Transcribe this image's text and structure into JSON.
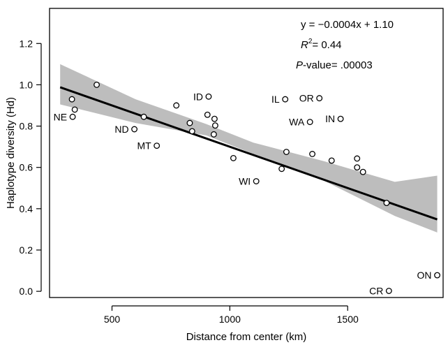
{
  "chart_data": {
    "type": "scatter",
    "xlabel": "Distance from center (km)",
    "ylabel": "Haplotype diversity (Hd)",
    "xlim": [
      235,
      1905
    ],
    "ylim": [
      -0.03,
      1.37
    ],
    "x_ticks": [
      500,
      1000,
      1500
    ],
    "y_ticks": [
      0.0,
      0.2,
      0.4,
      0.6,
      0.8,
      1.0,
      1.2
    ],
    "y_tick_labels": [
      "0.0",
      "0.2",
      "0.4",
      "0.6",
      "0.8",
      "1.0",
      "1.2"
    ],
    "annotations": {
      "equation": "y = −0.0004x + 1.10",
      "r2_prefix": "R",
      "r2_sup": "2",
      "r2_value": "= 0.44",
      "p_prefix": "P",
      "p_value": "-value= .00003"
    },
    "regression": {
      "slope": -0.0004,
      "intercept": 1.1,
      "x_range": [
        280,
        1880
      ],
      "ci_band": [
        {
          "x": 280,
          "lo": 0.905,
          "hi": 1.1
        },
        {
          "x": 600,
          "lo": 0.815,
          "hi": 0.93
        },
        {
          "x": 900,
          "lo": 0.755,
          "hi": 0.81
        },
        {
          "x": 1100,
          "lo": 0.665,
          "hi": 0.72
        },
        {
          "x": 1400,
          "lo": 0.535,
          "hi": 0.63
        },
        {
          "x": 1700,
          "lo": 0.365,
          "hi": 0.53
        },
        {
          "x": 1880,
          "lo": 0.285,
          "hi": 0.56
        }
      ]
    },
    "points": [
      {
        "x": 330,
        "y": 0.93,
        "label": ""
      },
      {
        "x": 342,
        "y": 0.88,
        "label": ""
      },
      {
        "x": 333,
        "y": 0.845,
        "label": "NE"
      },
      {
        "x": 435,
        "y": 1.0,
        "label": ""
      },
      {
        "x": 595,
        "y": 0.785,
        "label": "ND"
      },
      {
        "x": 635,
        "y": 0.845,
        "label": ""
      },
      {
        "x": 690,
        "y": 0.705,
        "label": "MT"
      },
      {
        "x": 773,
        "y": 0.9,
        "label": ""
      },
      {
        "x": 830,
        "y": 0.815,
        "label": ""
      },
      {
        "x": 840,
        "y": 0.775,
        "label": ""
      },
      {
        "x": 905,
        "y": 0.855,
        "label": ""
      },
      {
        "x": 910,
        "y": 0.943,
        "label": "ID"
      },
      {
        "x": 935,
        "y": 0.835,
        "label": ""
      },
      {
        "x": 938,
        "y": 0.803,
        "label": ""
      },
      {
        "x": 932,
        "y": 0.76,
        "label": ""
      },
      {
        "x": 1015,
        "y": 0.645,
        "label": ""
      },
      {
        "x": 1112,
        "y": 0.533,
        "label": "WI"
      },
      {
        "x": 1220,
        "y": 0.593,
        "label": ""
      },
      {
        "x": 1235,
        "y": 0.93,
        "label": "IL"
      },
      {
        "x": 1240,
        "y": 0.675,
        "label": ""
      },
      {
        "x": 1340,
        "y": 0.82,
        "label": "WA"
      },
      {
        "x": 1350,
        "y": 0.665,
        "label": ""
      },
      {
        "x": 1380,
        "y": 0.935,
        "label": "OR"
      },
      {
        "x": 1432,
        "y": 0.633,
        "label": ""
      },
      {
        "x": 1470,
        "y": 0.835,
        "label": "IN"
      },
      {
        "x": 1540,
        "y": 0.643,
        "label": ""
      },
      {
        "x": 1540,
        "y": 0.6,
        "label": ""
      },
      {
        "x": 1565,
        "y": 0.578,
        "label": ""
      },
      {
        "x": 1665,
        "y": 0.428,
        "label": ""
      },
      {
        "x": 1675,
        "y": 0.002,
        "label": "CR"
      },
      {
        "x": 1880,
        "y": 0.078,
        "label": "ON"
      }
    ]
  }
}
